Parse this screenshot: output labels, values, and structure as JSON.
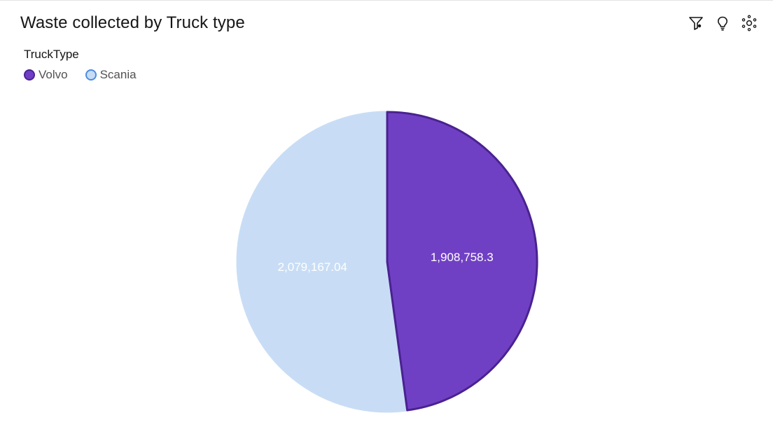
{
  "header": {
    "title": "Waste collected by Truck type"
  },
  "toolbar": {
    "filter_icon": "filter-icon",
    "insight_icon": "lightbulb-icon",
    "settings_icon": "settings-dots-icon"
  },
  "legend": {
    "title": "TruckType",
    "items": [
      {
        "label": "Volvo",
        "color": "#6f3ec5",
        "border": "#4b2394"
      },
      {
        "label": "Scania",
        "color": "#c8dcf5",
        "border": "#4a8ee0"
      }
    ]
  },
  "chart_data": {
    "type": "pie",
    "title": "Waste collected by Truck type",
    "legend_title": "TruckType",
    "legend_position": "top-left",
    "slices": [
      {
        "name": "Volvo",
        "value": 1908758.3,
        "label": "1,908,758.3",
        "color": "#7040c4",
        "stroke": "#4a2290"
      },
      {
        "name": "Scania",
        "value": 2079167.04,
        "label": "2,079,167.04",
        "color": "#c8ddf5",
        "stroke": "#c8ddf5"
      }
    ]
  }
}
